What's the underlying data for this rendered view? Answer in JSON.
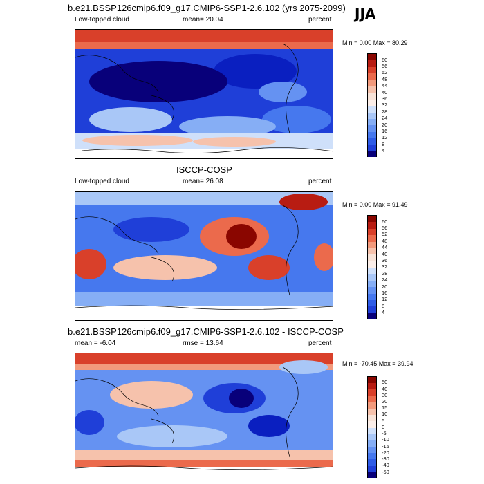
{
  "season": "JJA",
  "panels": [
    {
      "header": "b.e21.BSSP126cmip6.f09_g17.CMIP6-SSP1-2.6.102 (yrs 2075-2099)",
      "left_label": "Low-topped cloud",
      "center_label": "mean=  20.04",
      "right_label": "percent",
      "minmax": "Min =   0.00 Max =  80.29",
      "colorbar_ticks": [
        "60",
        "56",
        "52",
        "48",
        "44",
        "40",
        "36",
        "32",
        "28",
        "24",
        "20",
        "16",
        "12",
        "8",
        "4"
      ]
    },
    {
      "header": "ISCCP-COSP",
      "left_label": "Low-topped cloud",
      "center_label": "mean=  26.08",
      "right_label": "percent",
      "minmax": "Min =   0.00 Max =  91.49",
      "colorbar_ticks": [
        "60",
        "56",
        "52",
        "48",
        "44",
        "40",
        "36",
        "32",
        "28",
        "24",
        "20",
        "16",
        "12",
        "8",
        "4"
      ]
    },
    {
      "header": "b.e21.BSSP126cmip6.f09_g17.CMIP6-SSP1-2.6.102 - ISCCP-COSP",
      "left_label": "mean =  -6.04",
      "center_label": "rmse =  13.64",
      "right_label": "percent",
      "minmax": "Min = -70.45 Max =  39.94",
      "colorbar_ticks": [
        "50",
        "40",
        "30",
        "20",
        "15",
        "10",
        "5",
        "0",
        "-5",
        "-10",
        "-15",
        "-20",
        "-30",
        "-40",
        "-50"
      ]
    }
  ],
  "chart_data": [
    {
      "type": "heatmap",
      "title": "b.e21.BSSP126cmip6.f09_g17.CMIP6-SSP1-2.6.102 (yrs 2075-2099)",
      "variable": "Low-topped cloud",
      "units": "percent",
      "mean": 20.04,
      "min": 0.0,
      "max": 80.29,
      "levels": [
        4,
        8,
        12,
        16,
        20,
        24,
        28,
        32,
        36,
        40,
        44,
        48,
        52,
        56,
        60
      ]
    },
    {
      "type": "heatmap",
      "title": "ISCCP-COSP",
      "variable": "Low-topped cloud",
      "units": "percent",
      "mean": 26.08,
      "min": 0.0,
      "max": 91.49,
      "levels": [
        4,
        8,
        12,
        16,
        20,
        24,
        28,
        32,
        36,
        40,
        44,
        48,
        52,
        56,
        60
      ]
    },
    {
      "type": "heatmap",
      "title": "b.e21.BSSP126cmip6.f09_g17.CMIP6-SSP1-2.6.102 - ISCCP-COSP",
      "units": "percent",
      "mean": -6.04,
      "rmse": 13.64,
      "min": -70.45,
      "max": 39.94,
      "levels": [
        -50,
        -40,
        -30,
        -20,
        -15,
        -10,
        -5,
        0,
        5,
        10,
        15,
        20,
        30,
        40,
        50
      ]
    }
  ],
  "colors": {
    "scale": [
      "#08007a",
      "#0a1fc0",
      "#1f3fd8",
      "#2f5ce6",
      "#4678ee",
      "#6592f2",
      "#86aef5",
      "#a9c7f7",
      "#cfe0fa",
      "#f7e3d8",
      "#f6c2ac",
      "#f29a7c",
      "#eb6a4c",
      "#d9402a",
      "#b81c12",
      "#8a0600"
    ]
  }
}
